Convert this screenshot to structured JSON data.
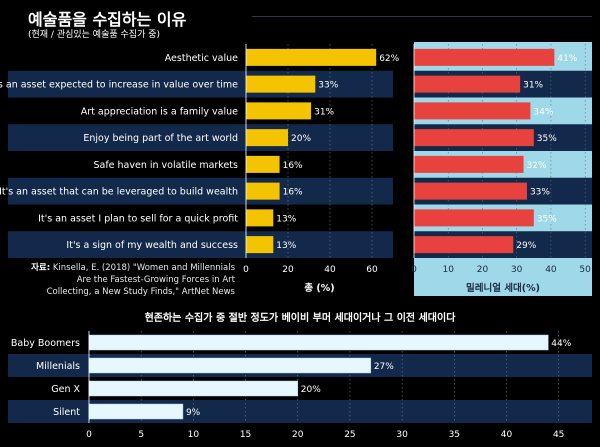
{
  "header": {
    "title": "예술품을 수집하는 이유",
    "subtitle": "(현재 / 관심있는 예술품 수집가 중)"
  },
  "source": {
    "label": "자료:",
    "text": "Kinsella, E. (2018) \"Women and Millennials Are the Fastest-Growing Forces in Art Collecting, a New Study Finds,\" ArtNet News"
  },
  "colors": {
    "total": "#f5c400",
    "millennial": "#e8423f",
    "generation": "#e6f7ff",
    "band": "#13294b",
    "millennial_panel": "#9fd8e8"
  },
  "chart_data": [
    {
      "type": "bar",
      "orientation": "horizontal",
      "categories": [
        "Aesthetic value",
        "It's an asset expected to increase in value over time",
        "Art appreciation is a family value",
        "Enjoy being part of the art world",
        "Safe haven in volatile markets",
        "It's an asset that can be leveraged to build wealth",
        "It's an asset I plan to sell for a quick profit",
        "It's a sign of my wealth and success"
      ],
      "series": [
        {
          "name": "총 (%)",
          "values": [
            62,
            33,
            31,
            20,
            16,
            16,
            13,
            13
          ]
        },
        {
          "name": "밀레니얼 세대(%)",
          "values": [
            41,
            31,
            34,
            35,
            32,
            33,
            35,
            29
          ]
        }
      ],
      "xlabels": [
        "총 (%)",
        "밀레니얼 세대(%)"
      ],
      "xlims": [
        [
          0,
          70
        ],
        [
          0,
          52
        ]
      ],
      "xticks": [
        [
          0,
          20,
          40,
          60
        ],
        [
          0,
          10,
          20,
          30,
          40,
          50
        ]
      ],
      "value_suffix": "%",
      "grid": true
    },
    {
      "type": "bar",
      "orientation": "horizontal",
      "title": "현존하는 수집가 중 절반 정도가 베이비 부머 세대이거나 그 이전 세대이다",
      "categories": [
        "Baby Boomers",
        "Millenials",
        "Gen X",
        "Silent"
      ],
      "values": [
        44,
        27,
        20,
        9
      ],
      "xlim": [
        0,
        48
      ],
      "xticks": [
        0,
        5,
        10,
        15,
        20,
        25,
        30,
        35,
        40,
        45
      ],
      "value_suffix": "%",
      "grid": true
    }
  ]
}
